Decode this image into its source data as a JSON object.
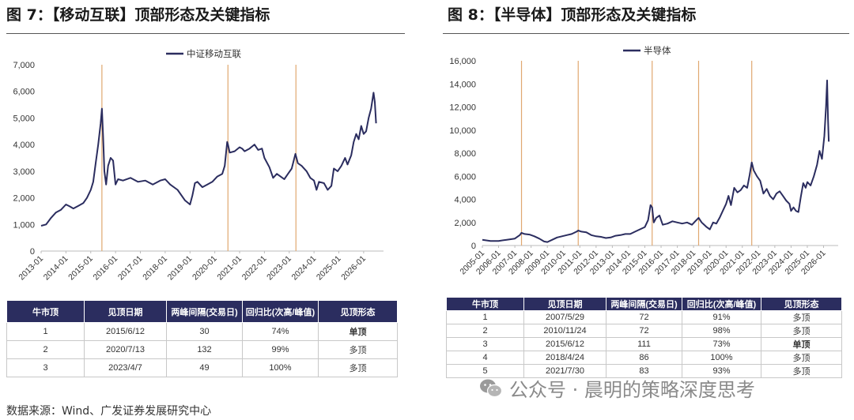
{
  "figures": [
    {
      "title": "图 7：【移动互联】顶部形态及关键指标",
      "table": {
        "headers": [
          "牛市顶",
          "见顶日期",
          "两峰间隔(交易日)",
          "回归比(次高/峰值)",
          "见顶形态"
        ],
        "rows": [
          [
            "1",
            "2015/6/12",
            "30",
            "74%",
            "单顶"
          ],
          [
            "2",
            "2020/7/13",
            "132",
            "99%",
            "多顶"
          ],
          [
            "3",
            "2023/4/7",
            "49",
            "100%",
            "多顶"
          ]
        ]
      }
    },
    {
      "title": "图 8：【半导体】顶部形态及关键指标",
      "table": {
        "headers": [
          "牛市顶",
          "见顶日期",
          "两峰间隔(交易日)",
          "回归比(次高/峰值)",
          "见顶形态"
        ],
        "rows": [
          [
            "1",
            "2007/5/29",
            "72",
            "91%",
            "多顶"
          ],
          [
            "2",
            "2010/11/24",
            "72",
            "98%",
            "多顶"
          ],
          [
            "3",
            "2015/6/12",
            "111",
            "73%",
            "单顶"
          ],
          [
            "4",
            "2018/4/24",
            "86",
            "100%",
            "多顶"
          ],
          [
            "5",
            "2021/7/30",
            "83",
            "93%",
            "多顶"
          ]
        ]
      }
    }
  ],
  "source": "数据来源：Wind、广发证券发展研究中心",
  "watermark": "公众号 · 晨明的策略深度思考",
  "colors": {
    "line": "#2b2d5f",
    "marker": "#e0a870",
    "header_bg": "#2b2d5f",
    "single_top": "#cc0000"
  },
  "chart_data": [
    {
      "type": "line",
      "legend": "中证移动互联",
      "legend_position": "top-center",
      "x_labels": [
        "2013-01",
        "2014-01",
        "2015-01",
        "2016-01",
        "2017-01",
        "2018-01",
        "2019-01",
        "2020-01",
        "2021-01",
        "2022-01",
        "2023-01",
        "2024-01",
        "2025-01",
        "2026-01"
      ],
      "y_ticks": [
        "0",
        "1,000",
        "2,000",
        "3,000",
        "4,000",
        "5,000",
        "6,000",
        "7,000"
      ],
      "ylim": [
        0,
        7000
      ],
      "xlim": [
        2013.0,
        2026.8
      ],
      "peak_markers": [
        2015.45,
        2020.53,
        2023.27
      ],
      "series": [
        {
          "name": "中证移动互联",
          "points": [
            [
              2013.0,
              950
            ],
            [
              2013.2,
              1000
            ],
            [
              2013.4,
              1250
            ],
            [
              2013.6,
              1450
            ],
            [
              2013.8,
              1550
            ],
            [
              2014.0,
              1750
            ],
            [
              2014.15,
              1680
            ],
            [
              2014.3,
              1600
            ],
            [
              2014.5,
              1700
            ],
            [
              2014.7,
              1800
            ],
            [
              2014.85,
              2000
            ],
            [
              2015.0,
              2300
            ],
            [
              2015.1,
              2600
            ],
            [
              2015.2,
              3300
            ],
            [
              2015.3,
              4000
            ],
            [
              2015.4,
              4800
            ],
            [
              2015.45,
              5350
            ],
            [
              2015.5,
              4300
            ],
            [
              2015.55,
              3000
            ],
            [
              2015.62,
              2500
            ],
            [
              2015.7,
              3200
            ],
            [
              2015.8,
              3500
            ],
            [
              2015.9,
              3400
            ],
            [
              2016.0,
              2500
            ],
            [
              2016.1,
              2700
            ],
            [
              2016.3,
              2650
            ],
            [
              2016.6,
              2750
            ],
            [
              2016.9,
              2600
            ],
            [
              2017.2,
              2650
            ],
            [
              2017.5,
              2500
            ],
            [
              2017.8,
              2650
            ],
            [
              2018.0,
              2700
            ],
            [
              2018.2,
              2500
            ],
            [
              2018.5,
              2300
            ],
            [
              2018.8,
              1900
            ],
            [
              2019.0,
              1750
            ],
            [
              2019.1,
              2100
            ],
            [
              2019.2,
              2550
            ],
            [
              2019.3,
              2600
            ],
            [
              2019.5,
              2400
            ],
            [
              2019.7,
              2500
            ],
            [
              2019.9,
              2600
            ],
            [
              2020.1,
              2800
            ],
            [
              2020.3,
              2900
            ],
            [
              2020.4,
              3200
            ],
            [
              2020.5,
              4100
            ],
            [
              2020.53,
              4000
            ],
            [
              2020.6,
              3700
            ],
            [
              2020.8,
              3750
            ],
            [
              2021.0,
              3900
            ],
            [
              2021.1,
              3850
            ],
            [
              2021.2,
              3750
            ],
            [
              2021.4,
              3850
            ],
            [
              2021.6,
              4000
            ],
            [
              2021.75,
              3800
            ],
            [
              2021.9,
              3850
            ],
            [
              2022.0,
              3500
            ],
            [
              2022.2,
              3150
            ],
            [
              2022.35,
              2750
            ],
            [
              2022.5,
              2900
            ],
            [
              2022.65,
              2800
            ],
            [
              2022.8,
              2700
            ],
            [
              2022.95,
              2900
            ],
            [
              2023.1,
              3100
            ],
            [
              2023.25,
              3650
            ],
            [
              2023.35,
              3300
            ],
            [
              2023.5,
              3200
            ],
            [
              2023.7,
              3000
            ],
            [
              2023.85,
              2750
            ],
            [
              2024.0,
              2650
            ],
            [
              2024.1,
              2300
            ],
            [
              2024.2,
              2600
            ],
            [
              2024.4,
              2550
            ],
            [
              2024.55,
              2300
            ],
            [
              2024.7,
              2450
            ],
            [
              2024.8,
              3100
            ],
            [
              2024.95,
              3000
            ],
            [
              2025.1,
              3200
            ],
            [
              2025.25,
              3500
            ],
            [
              2025.35,
              3250
            ],
            [
              2025.5,
              3600
            ],
            [
              2025.6,
              4100
            ],
            [
              2025.7,
              4400
            ],
            [
              2025.8,
              4200
            ],
            [
              2025.9,
              4700
            ],
            [
              2026.0,
              4400
            ],
            [
              2026.1,
              4500
            ],
            [
              2026.2,
              5000
            ],
            [
              2026.3,
              5350
            ],
            [
              2026.4,
              5950
            ],
            [
              2026.45,
              5600
            ],
            [
              2026.5,
              4800
            ]
          ]
        }
      ]
    },
    {
      "type": "line",
      "legend": "半导体",
      "legend_position": "top-center",
      "x_labels": [
        "2005-01",
        "2006-01",
        "2007-01",
        "2008-01",
        "2009-01",
        "2010-01",
        "2011-01",
        "2012-01",
        "2013-01",
        "2014-01",
        "2015-01",
        "2016-01",
        "2017-01",
        "2018-01",
        "2019-01",
        "2020-01",
        "2021-01",
        "2022-01",
        "2023-01",
        "2024-01",
        "2025-01",
        "2026-01"
      ],
      "y_ticks": [
        "0",
        "2,000",
        "4,000",
        "6,000",
        "8,000",
        "10,000",
        "12,000",
        "14,000",
        "16,000"
      ],
      "ylim": [
        0,
        16000
      ],
      "xlim": [
        2005.0,
        2026.9
      ],
      "peak_markers": [
        2007.41,
        2010.9,
        2015.45,
        2018.31,
        2021.58
      ],
      "series": [
        {
          "name": "半导体",
          "points": [
            [
              2005.0,
              500
            ],
            [
              2005.5,
              400
            ],
            [
              2006.0,
              400
            ],
            [
              2006.5,
              500
            ],
            [
              2007.0,
              600
            ],
            [
              2007.3,
              900
            ],
            [
              2007.41,
              1100
            ],
            [
              2007.6,
              1000
            ],
            [
              2007.9,
              950
            ],
            [
              2008.2,
              800
            ],
            [
              2008.5,
              600
            ],
            [
              2008.8,
              350
            ],
            [
              2009.0,
              300
            ],
            [
              2009.3,
              500
            ],
            [
              2009.6,
              700
            ],
            [
              2009.9,
              800
            ],
            [
              2010.2,
              900
            ],
            [
              2010.5,
              1000
            ],
            [
              2010.8,
              1200
            ],
            [
              2010.9,
              1300
            ],
            [
              2011.1,
              1200
            ],
            [
              2011.4,
              1150
            ],
            [
              2011.7,
              900
            ],
            [
              2012.0,
              800
            ],
            [
              2012.3,
              750
            ],
            [
              2012.6,
              650
            ],
            [
              2012.9,
              700
            ],
            [
              2013.2,
              850
            ],
            [
              2013.5,
              900
            ],
            [
              2013.8,
              1000
            ],
            [
              2014.1,
              1000
            ],
            [
              2014.4,
              1200
            ],
            [
              2014.7,
              1400
            ],
            [
              2015.0,
              1600
            ],
            [
              2015.2,
              2200
            ],
            [
              2015.35,
              3500
            ],
            [
              2015.45,
              3300
            ],
            [
              2015.55,
              2000
            ],
            [
              2015.7,
              2400
            ],
            [
              2015.9,
              2600
            ],
            [
              2016.1,
              1800
            ],
            [
              2016.4,
              1900
            ],
            [
              2016.7,
              2100
            ],
            [
              2017.0,
              2000
            ],
            [
              2017.3,
              1900
            ],
            [
              2017.6,
              2000
            ],
            [
              2017.9,
              1800
            ],
            [
              2018.1,
              2100
            ],
            [
              2018.31,
              2400
            ],
            [
              2018.5,
              2000
            ],
            [
              2018.8,
              1600
            ],
            [
              2019.0,
              1400
            ],
            [
              2019.2,
              2000
            ],
            [
              2019.4,
              1900
            ],
            [
              2019.6,
              2400
            ],
            [
              2019.8,
              3000
            ],
            [
              2020.0,
              3600
            ],
            [
              2020.15,
              4300
            ],
            [
              2020.3,
              3500
            ],
            [
              2020.5,
              5000
            ],
            [
              2020.7,
              4600
            ],
            [
              2020.9,
              4800
            ],
            [
              2021.1,
              5200
            ],
            [
              2021.3,
              5000
            ],
            [
              2021.45,
              6100
            ],
            [
              2021.58,
              7200
            ],
            [
              2021.7,
              6500
            ],
            [
              2021.9,
              6000
            ],
            [
              2022.1,
              5600
            ],
            [
              2022.3,
              4500
            ],
            [
              2022.5,
              4900
            ],
            [
              2022.7,
              4300
            ],
            [
              2022.9,
              4000
            ],
            [
              2023.1,
              4500
            ],
            [
              2023.3,
              4700
            ],
            [
              2023.5,
              4300
            ],
            [
              2023.7,
              3900
            ],
            [
              2023.9,
              3600
            ],
            [
              2024.0,
              3000
            ],
            [
              2024.15,
              3300
            ],
            [
              2024.3,
              3000
            ],
            [
              2024.45,
              2900
            ],
            [
              2024.6,
              4200
            ],
            [
              2024.75,
              5400
            ],
            [
              2024.9,
              5000
            ],
            [
              2025.0,
              5500
            ],
            [
              2025.2,
              5200
            ],
            [
              2025.4,
              6000
            ],
            [
              2025.6,
              7000
            ],
            [
              2025.75,
              8200
            ],
            [
              2025.9,
              7500
            ],
            [
              2026.05,
              9500
            ],
            [
              2026.15,
              12000
            ],
            [
              2026.22,
              14300
            ],
            [
              2026.27,
              11000
            ],
            [
              2026.32,
              9000
            ]
          ]
        }
      ]
    }
  ]
}
